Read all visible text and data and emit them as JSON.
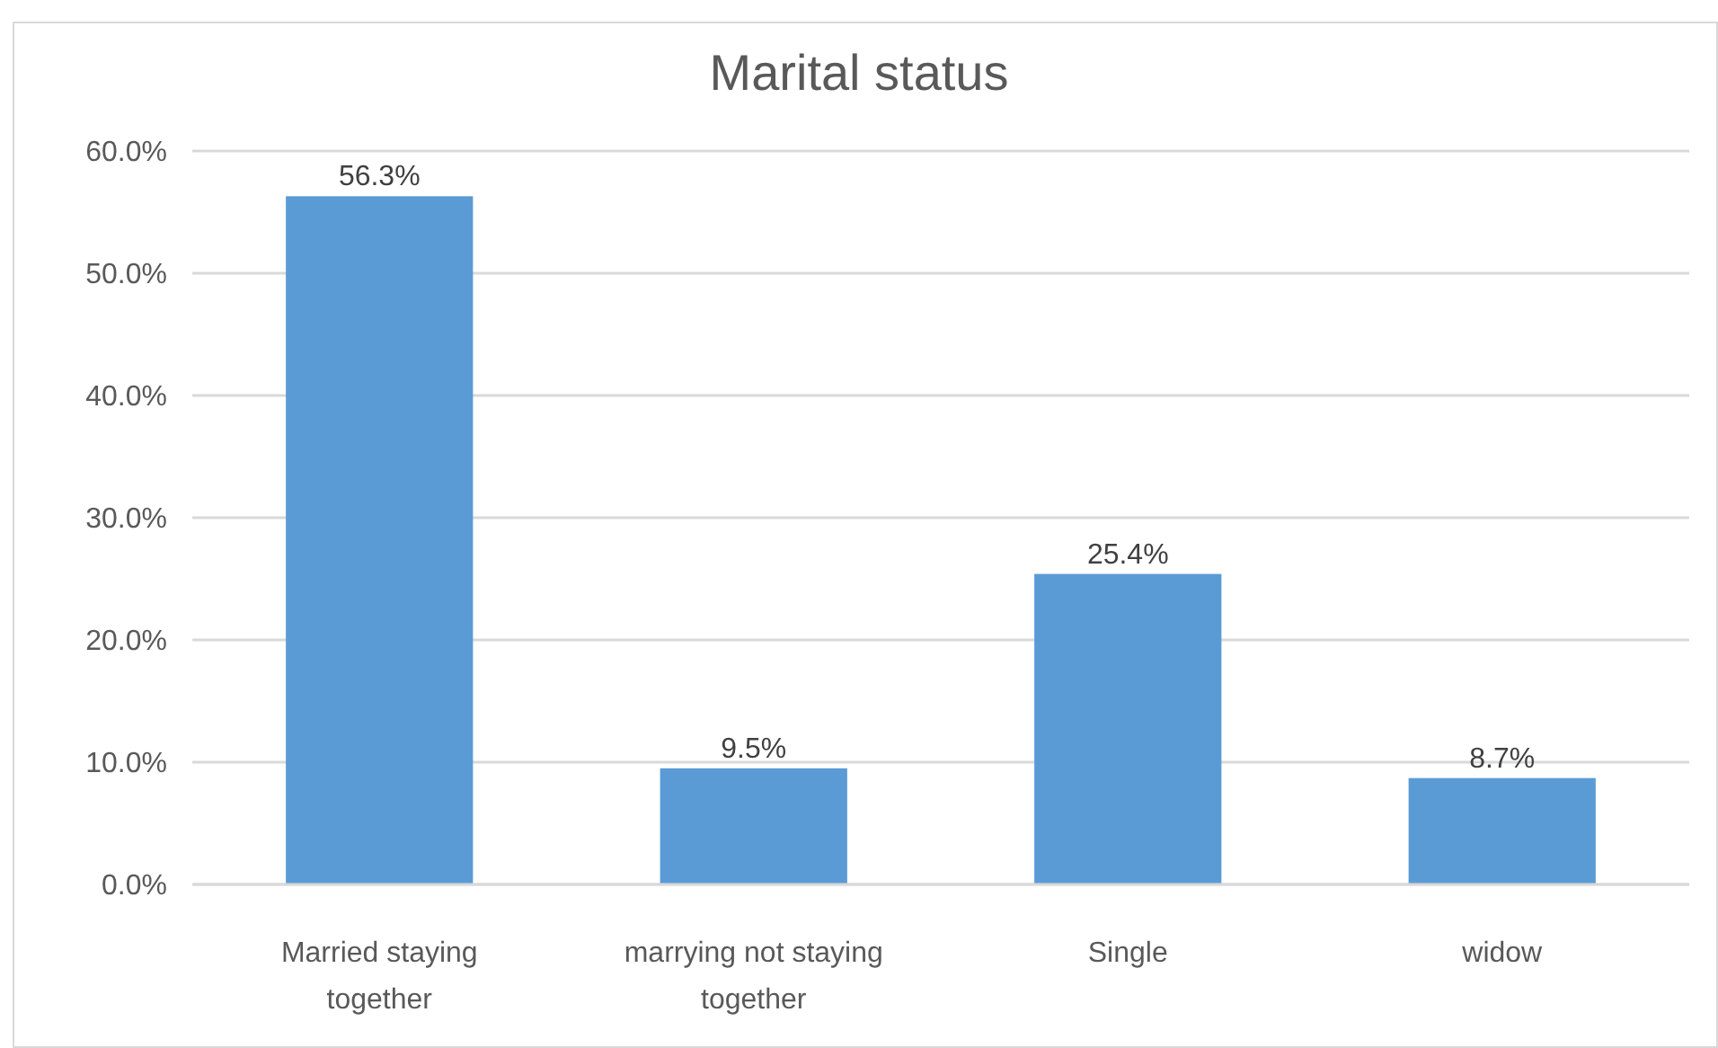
{
  "chart_data": {
    "type": "bar",
    "title": "Marital status",
    "categories": [
      "Married staying together",
      "marrying not staying together",
      "Single",
      "widow"
    ],
    "values": [
      56.3,
      9.5,
      25.4,
      8.7
    ],
    "color": "#5b9bd5",
    "value_labels": [
      "56.3%",
      "9.5%",
      "25.4%",
      "8.7%"
    ],
    "ylim": [
      0,
      60
    ],
    "yticks": [
      {
        "value": 0,
        "label": "0.0%"
      },
      {
        "value": 10,
        "label": "10.0%"
      },
      {
        "value": 20,
        "label": "20.0%"
      },
      {
        "value": 30,
        "label": "30.0%"
      },
      {
        "value": 40,
        "label": "40.0%"
      },
      {
        "value": 50,
        "label": "50.0%"
      },
      {
        "value": 60,
        "label": "60.0%"
      }
    ],
    "grid": "y"
  }
}
